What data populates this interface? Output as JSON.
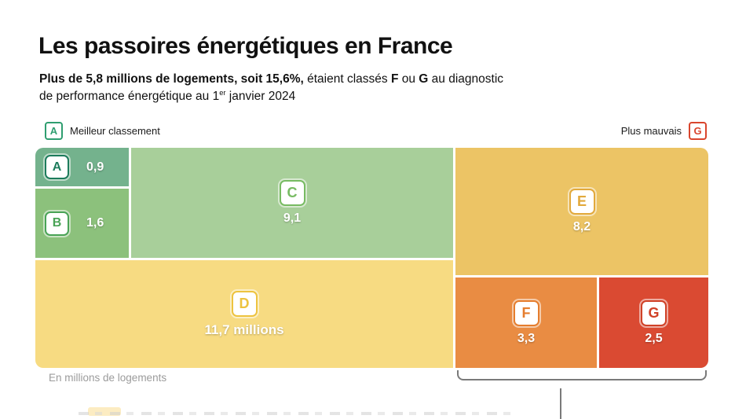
{
  "header": {
    "title": "Les passoires énergétiques en France",
    "subtitle_segments": [
      {
        "text": "Plus de 5,8 millions de logements, soit 15,6%,",
        "bold": true
      },
      {
        "text": " étaient classés "
      },
      {
        "text": "F",
        "bold": true
      },
      {
        "text": " ou "
      },
      {
        "text": "G",
        "bold": true
      },
      {
        "text": " au diagnostic"
      },
      {
        "br": true
      },
      {
        "text": "de performance énergétique au 1"
      },
      {
        "text": "er",
        "sup": true
      },
      {
        "text": " janvier 2024"
      }
    ]
  },
  "legend": {
    "best": {
      "badge": "A",
      "label": "Meilleur classement",
      "color": "#2f9e70"
    },
    "worst": {
      "badge": "G",
      "label": "Plus mauvais",
      "color": "#d9452d"
    }
  },
  "chart_data": {
    "type": "treemap",
    "title": "Les passoires énergétiques en France",
    "unit": "En millions de logements",
    "categories": [
      "A",
      "B",
      "C",
      "D",
      "E",
      "F",
      "G"
    ],
    "values": [
      0.9,
      1.6,
      9.1,
      11.7,
      8.2,
      3.3,
      2.5
    ],
    "items": [
      {
        "label": "A",
        "value": 0.9,
        "display": "0,9",
        "color": "#74b28d",
        "letter_color": "#1d7c5c"
      },
      {
        "label": "B",
        "value": 1.6,
        "display": "1,6",
        "color": "#8cc17c",
        "letter_color": "#49a356"
      },
      {
        "label": "C",
        "value": 9.1,
        "display": "9,1",
        "color": "#a8cf9a",
        "letter_color": "#77bb62"
      },
      {
        "label": "D",
        "value": 11.7,
        "display": "11,7 millions",
        "color": "#f7db82",
        "letter_color": "#edc33f"
      },
      {
        "label": "E",
        "value": 8.2,
        "display": "8,2",
        "color": "#ecc465",
        "letter_color": "#e2a93c"
      },
      {
        "label": "F",
        "value": 3.3,
        "display": "3,3",
        "color": "#e98c43",
        "letter_color": "#e57d2e"
      },
      {
        "label": "G",
        "value": 2.5,
        "display": "2,5",
        "color": "#da4a32",
        "letter_color": "#d04127"
      }
    ],
    "annotation": {
      "bracket_over": [
        "F",
        "G"
      ]
    },
    "legend_position": "top",
    "grid": false
  },
  "footer": {
    "unit_label": "En millions de logements",
    "truncated_caption_present": true
  }
}
